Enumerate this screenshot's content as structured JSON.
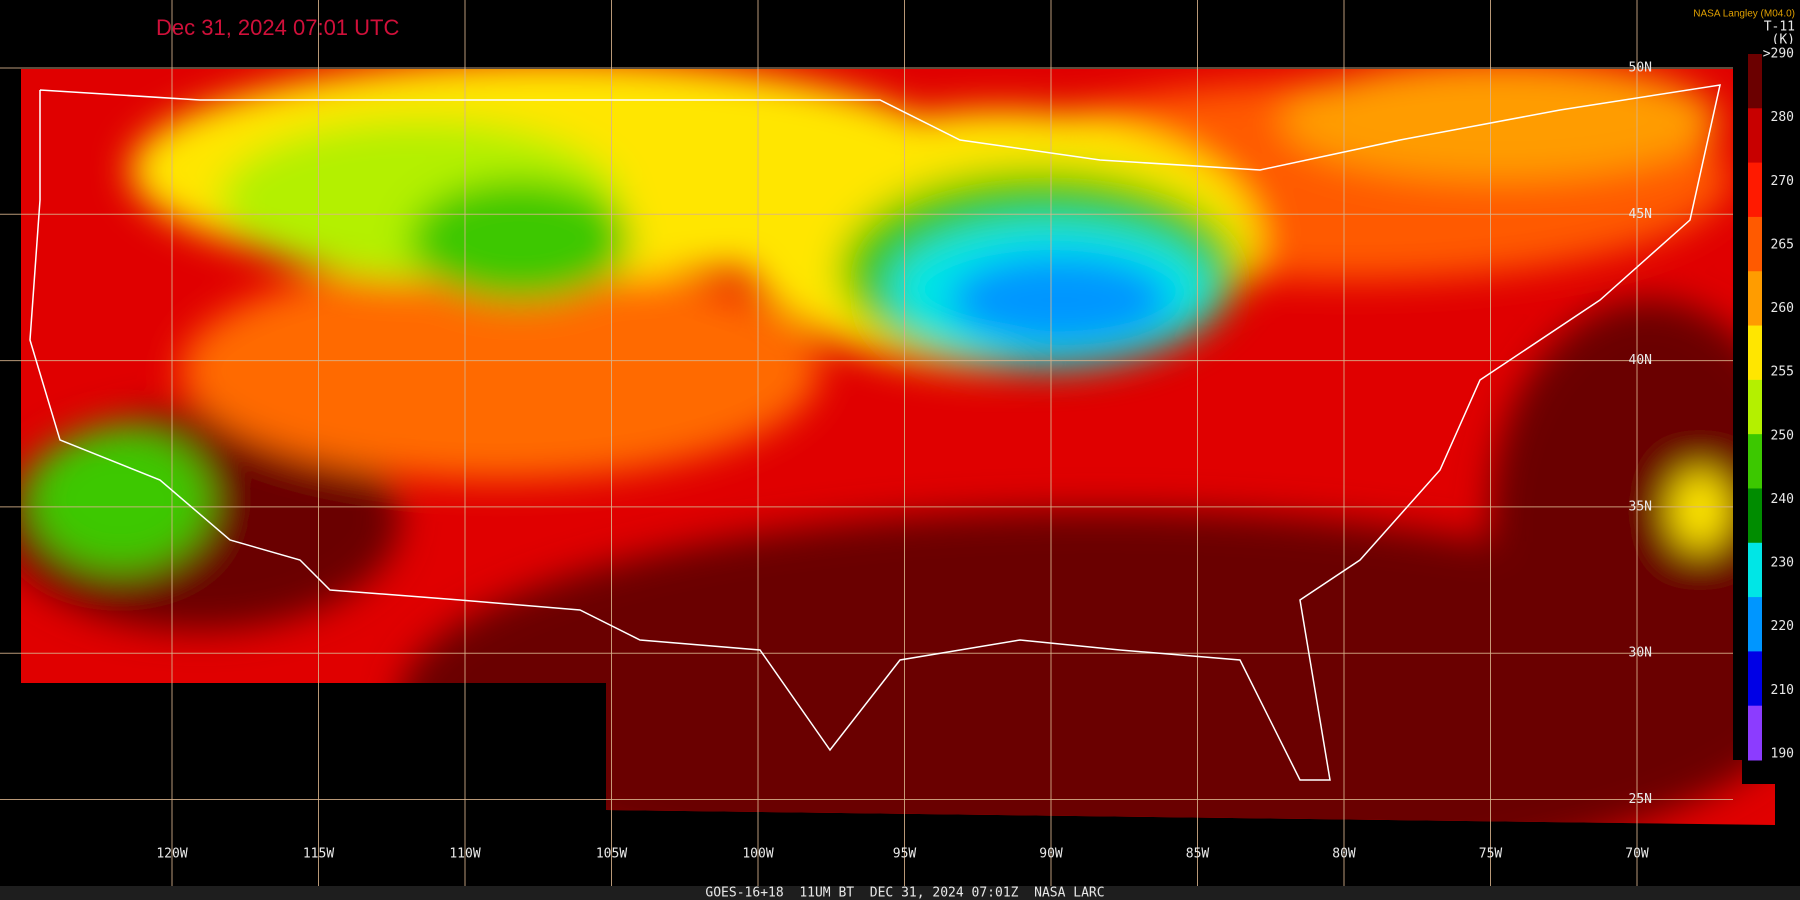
{
  "header": {
    "timestamp": "Dec 31, 2024 07:01 UTC",
    "credit": "NASA Langley (M04.0)"
  },
  "colorbar": {
    "product": "T-11",
    "unit": "(K)",
    "labels": [
      ">290",
      "280",
      "270",
      "265",
      "260",
      "255",
      "250",
      "240",
      "230",
      "220",
      "210",
      "190"
    ],
    "colors": [
      "#6b0000",
      "#c80000",
      "#ff1a00",
      "#ff5a00",
      "#ff9c00",
      "#ffe600",
      "#b4f000",
      "#3cc800",
      "#008c00",
      "#00e6e6",
      "#0096ff",
      "#0000e6",
      "#8c3cff"
    ]
  },
  "longitudes": [
    "120W",
    "115W",
    "110W",
    "105W",
    "100W",
    "95W",
    "90W",
    "85W",
    "80W",
    "75W",
    "70W"
  ],
  "latitudes": [
    "50N",
    "45N",
    "40N",
    "35N",
    "30N",
    "25N"
  ],
  "footer": "GOES-16+18  11UM BT  DEC 31, 2024 07:01Z  NASA LARC"
}
